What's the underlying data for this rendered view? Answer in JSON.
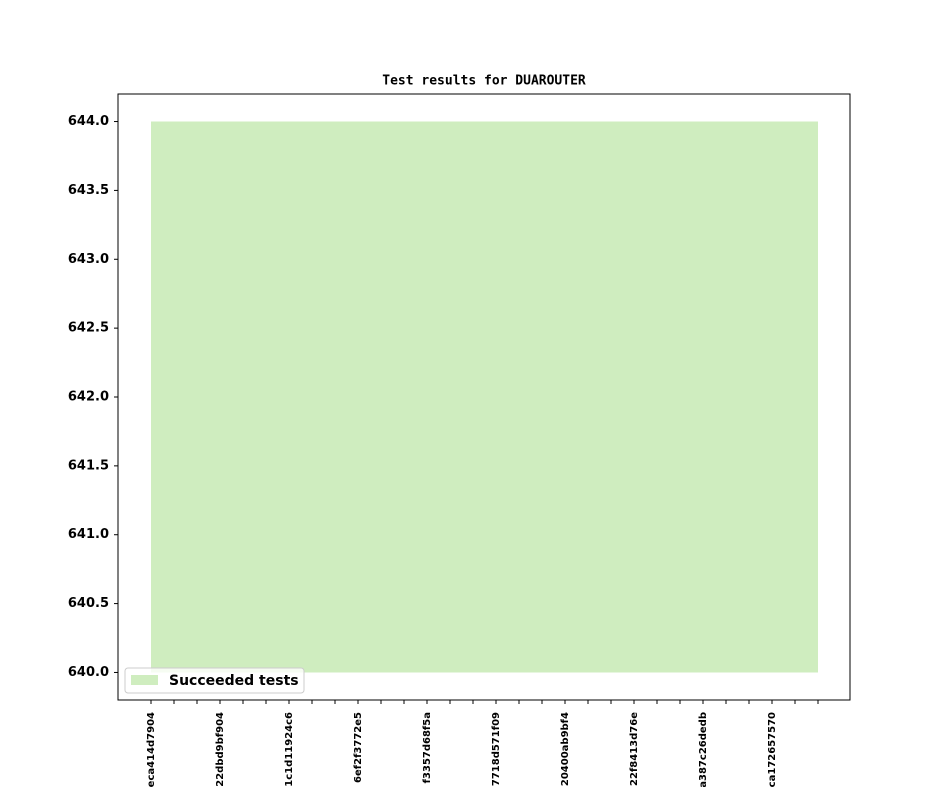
{
  "chart_data": {
    "type": "area",
    "title": "Test results for DUAROUTER",
    "categories": [
      "eca414d7904",
      null,
      null,
      "22dbd9bf904",
      null,
      null,
      "1c1d11924c6",
      null,
      null,
      "6ef2f3772e5",
      null,
      null,
      "f3357d68f5a",
      null,
      null,
      "7718d571f09",
      null,
      null,
      "20400ab9bf4",
      null,
      null,
      "22f8413d76e",
      null,
      null,
      "a387c26dedb",
      null,
      null,
      "ca172657570",
      null,
      null
    ],
    "series": [
      {
        "name": "Succeeded tests",
        "color": "#cfedbf",
        "values": [
          644,
          644,
          644,
          644,
          644,
          644,
          644,
          644,
          644,
          644,
          644,
          644,
          644,
          644,
          644,
          644,
          644,
          644,
          644,
          644,
          644,
          644,
          644,
          644,
          644,
          644,
          644,
          644,
          644,
          644
        ],
        "low": [
          640,
          640,
          640,
          640,
          640,
          640,
          640,
          640,
          640,
          640,
          640,
          640,
          640,
          640,
          640,
          640,
          640,
          640,
          640,
          640,
          640,
          640,
          640,
          640,
          640,
          640,
          640,
          640,
          640,
          640
        ]
      }
    ],
    "ylim": [
      639.8,
      644.2
    ],
    "yticks": [
      {
        "value": 640,
        "label": "640.0"
      },
      {
        "value": 640.5,
        "label": "640.5"
      },
      {
        "value": 641,
        "label": "641.0"
      },
      {
        "value": 641.5,
        "label": "641.5"
      },
      {
        "value": 642,
        "label": "642.0"
      },
      {
        "value": 642.5,
        "label": "642.5"
      },
      {
        "value": 643,
        "label": "643.0"
      },
      {
        "value": 643.5,
        "label": "643.5"
      },
      {
        "value": 644,
        "label": "644.0"
      }
    ],
    "legend": "lower left"
  }
}
